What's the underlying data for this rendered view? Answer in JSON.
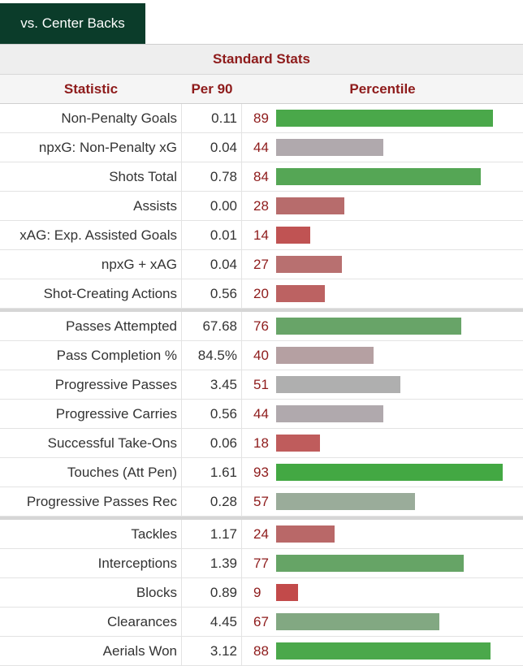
{
  "tab": {
    "label": "vs. Center Backs"
  },
  "table": {
    "title": "Standard Stats",
    "headers": {
      "statistic": "Statistic",
      "per90": "Per 90",
      "percentile": "Percentile"
    },
    "groups": [
      [
        {
          "stat": "Non-Penalty Goals",
          "per90": "0.11",
          "pct": 89,
          "color": "#4aa84a"
        },
        {
          "stat": "npxG: Non-Penalty xG",
          "per90": "0.04",
          "pct": 44,
          "color": "#b0a9ad"
        },
        {
          "stat": "Shots Total",
          "per90": "0.78",
          "pct": 84,
          "color": "#55a655"
        },
        {
          "stat": "Assists",
          "per90": "0.00",
          "pct": 28,
          "color": "#b76c6c"
        },
        {
          "stat": "xAG: Exp. Assisted Goals",
          "per90": "0.01",
          "pct": 14,
          "color": "#c05353"
        },
        {
          "stat": "npxG + xAG",
          "per90": "0.04",
          "pct": 27,
          "color": "#b87070"
        },
        {
          "stat": "Shot-Creating Actions",
          "per90": "0.56",
          "pct": 20,
          "color": "#bc6262"
        }
      ],
      [
        {
          "stat": "Passes Attempted",
          "per90": "67.68",
          "pct": 76,
          "color": "#68a468"
        },
        {
          "stat": "Pass Completion %",
          "per90": "84.5%",
          "pct": 40,
          "color": "#b5a0a2"
        },
        {
          "stat": "Progressive Passes",
          "per90": "3.45",
          "pct": 51,
          "color": "#afafaf"
        },
        {
          "stat": "Progressive Carries",
          "per90": "0.56",
          "pct": 44,
          "color": "#b0a9ad"
        },
        {
          "stat": "Successful Take-Ons",
          "per90": "0.06",
          "pct": 18,
          "color": "#bf5c5c"
        },
        {
          "stat": "Touches (Att Pen)",
          "per90": "1.61",
          "pct": 93,
          "color": "#43a843"
        },
        {
          "stat": "Progressive Passes Rec",
          "per90": "0.28",
          "pct": 57,
          "color": "#9aac9a"
        }
      ],
      [
        {
          "stat": "Tackles",
          "per90": "1.17",
          "pct": 24,
          "color": "#b96868"
        },
        {
          "stat": "Interceptions",
          "per90": "1.39",
          "pct": 77,
          "color": "#66a466"
        },
        {
          "stat": "Blocks",
          "per90": "0.89",
          "pct": 9,
          "color": "#c24a4a"
        },
        {
          "stat": "Clearances",
          "per90": "4.45",
          "pct": 67,
          "color": "#82a882"
        },
        {
          "stat": "Aerials Won",
          "per90": "3.12",
          "pct": 88,
          "color": "#4ba84b"
        }
      ]
    ]
  }
}
